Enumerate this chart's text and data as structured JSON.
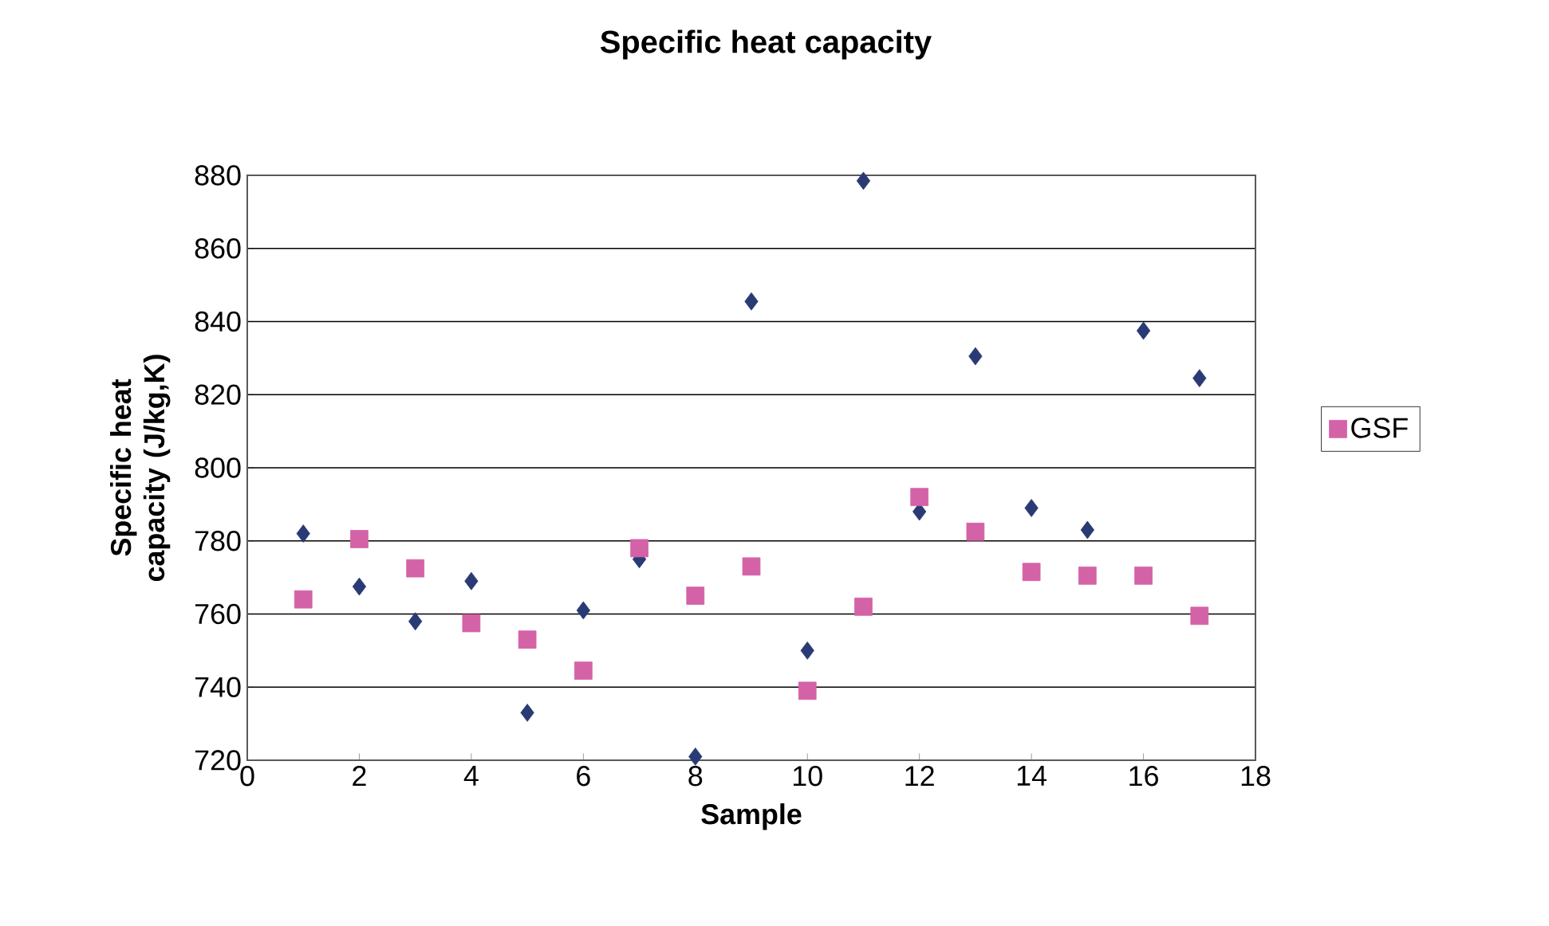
{
  "chart_data": {
    "type": "scatter",
    "title": "Specific heat capacity",
    "xlabel": "Sample",
    "ylabel": "Specific heat capacity (J/kg,K)",
    "x": [
      1,
      2,
      3,
      4,
      5,
      6,
      7,
      8,
      9,
      10,
      11,
      12,
      13,
      14,
      15,
      16,
      17
    ],
    "series": [
      {
        "color": "#2a3a75",
        "marker": "diamond",
        "values": [
          782,
          767.5,
          758,
          769,
          733,
          761,
          775,
          721,
          845.5,
          750,
          878.5,
          788,
          830.5,
          789,
          783,
          837.5,
          824.5
        ]
      },
      {
        "name": "GSF",
        "color": "#d462a6",
        "marker": "square",
        "values": [
          764,
          780.5,
          772.5,
          757.5,
          753,
          744.5,
          778,
          765,
          773,
          739,
          762,
          792,
          782.5,
          771.5,
          770.5,
          770.5,
          759.5
        ]
      }
    ],
    "xlim": [
      0,
      18
    ],
    "xticks": [
      0,
      2,
      4,
      6,
      8,
      10,
      12,
      14,
      16,
      18
    ],
    "ylim": [
      720,
      880
    ],
    "yticks": [
      720,
      740,
      760,
      780,
      800,
      820,
      840,
      860,
      880
    ],
    "grid": "y",
    "legend": "right"
  }
}
